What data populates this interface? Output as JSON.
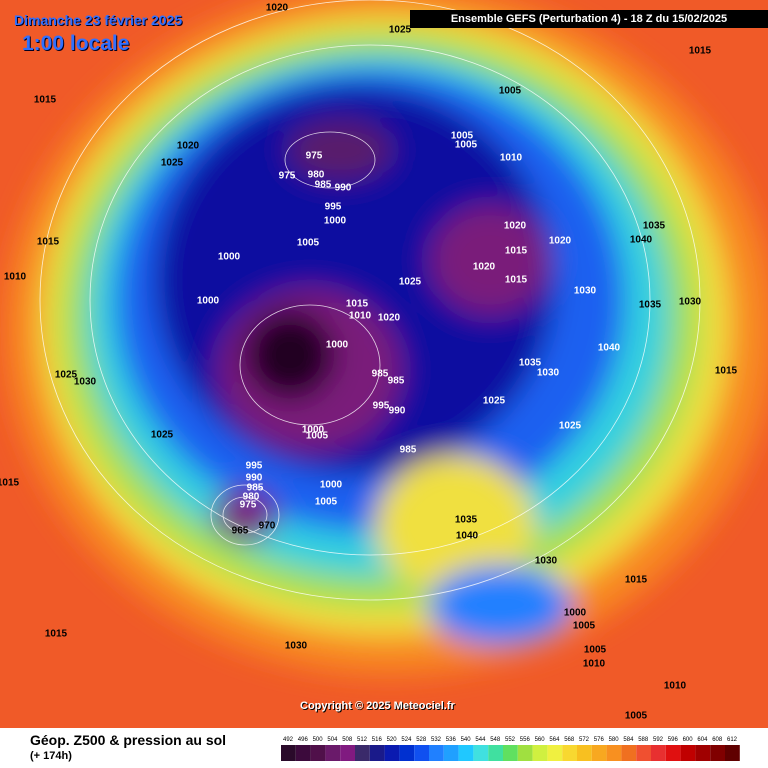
{
  "header": {
    "date": "Dimanche 23 février 2025",
    "local_time": "1:00 locale",
    "run": "Ensemble GEFS  (Perturbation 4)  -  18 Z du 15/02/2025"
  },
  "footer": {
    "title": "Géop. Z500 & pression au sol",
    "lead_time": "(+ 174h)",
    "copyright": "Copyright © 2025 Meteociel.fr"
  },
  "scale": {
    "labels": [
      492,
      496,
      500,
      504,
      508,
      512,
      516,
      520,
      524,
      528,
      532,
      536,
      540,
      544,
      548,
      552,
      556,
      560,
      564,
      568,
      572,
      576,
      580,
      584,
      588,
      592,
      596,
      600,
      604,
      608,
      612
    ],
    "colors": [
      "#2a0a2a",
      "#3c0a3c",
      "#50104a",
      "#6a1a6a",
      "#801a80",
      "#3a2a6a",
      "#1a1a8a",
      "#0a1ab0",
      "#0030d0",
      "#1050f0",
      "#2080ff",
      "#20a0ff",
      "#20c8ff",
      "#40e0e0",
      "#40e0a0",
      "#60e060",
      "#a0e040",
      "#d0f040",
      "#f0f040",
      "#f8d830",
      "#f8c020",
      "#f8a820",
      "#f89020",
      "#f07020",
      "#f05030",
      "#e83030",
      "#e01010",
      "#c00000",
      "#a00000",
      "#800000",
      "#600000"
    ]
  },
  "isobar_labels": [
    1020,
    1025,
    1015,
    1015,
    1005,
    1020,
    1025,
    975,
    975,
    980,
    985,
    990,
    1005,
    1005,
    1010,
    995,
    1000,
    1035,
    1015,
    1005,
    1040,
    1020,
    1020,
    1000,
    1015,
    1010,
    1020,
    1025,
    1015,
    1030,
    1000,
    1035,
    1030,
    1015,
    1010,
    1020,
    1000,
    1040,
    1035,
    1030,
    985,
    985,
    1015,
    1025,
    1030,
    995,
    990,
    1025,
    1025,
    1000,
    1005,
    1025,
    985,
    1015,
    995,
    990,
    985,
    1000,
    980,
    1005,
    975,
    1035,
    970,
    965,
    1040,
    1030,
    1015,
    1000,
    1005,
    1015,
    1030,
    1005,
    1010,
    1010,
    1005
  ]
}
